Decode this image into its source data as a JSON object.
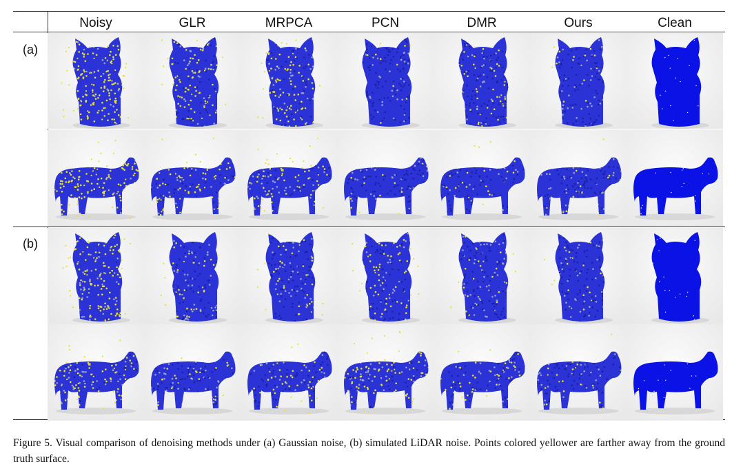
{
  "figure": {
    "columns": [
      "Noisy",
      "GLR",
      "MRPCA",
      "PCN",
      "DMR",
      "Ours",
      "Clean"
    ],
    "groups": [
      {
        "label": "(a)",
        "rows": [
          "cat",
          "cow"
        ]
      },
      {
        "label": "(b)",
        "rows": [
          "cat",
          "cow"
        ]
      }
    ],
    "cells": [
      [
        {
          "shape": "cat",
          "method": "Noisy",
          "yellow": 0.85
        },
        {
          "shape": "cat",
          "method": "GLR",
          "yellow": 0.45
        },
        {
          "shape": "cat",
          "method": "MRPCA",
          "yellow": 0.5
        },
        {
          "shape": "cat",
          "method": "PCN",
          "yellow": 0.06
        },
        {
          "shape": "cat",
          "method": "DMR",
          "yellow": 0.18
        },
        {
          "shape": "cat",
          "method": "Ours",
          "yellow": 0.1
        },
        {
          "shape": "cat",
          "method": "Clean",
          "yellow": 0.0
        }
      ],
      [
        {
          "shape": "cow",
          "method": "Noisy",
          "yellow": 0.85
        },
        {
          "shape": "cow",
          "method": "GLR",
          "yellow": 0.45
        },
        {
          "shape": "cow",
          "method": "MRPCA",
          "yellow": 0.55
        },
        {
          "shape": "cow",
          "method": "PCN",
          "yellow": 0.08
        },
        {
          "shape": "cow",
          "method": "DMR",
          "yellow": 0.12
        },
        {
          "shape": "cow",
          "method": "Ours",
          "yellow": 0.1
        },
        {
          "shape": "cow",
          "method": "Clean",
          "yellow": 0.0
        }
      ],
      [
        {
          "shape": "cat",
          "method": "Noisy",
          "yellow": 0.7
        },
        {
          "shape": "cat",
          "method": "GLR",
          "yellow": 0.2
        },
        {
          "shape": "cat",
          "method": "MRPCA",
          "yellow": 0.25
        },
        {
          "shape": "cat",
          "method": "PCN",
          "yellow": 0.3
        },
        {
          "shape": "cat",
          "method": "DMR",
          "yellow": 0.15
        },
        {
          "shape": "cat",
          "method": "Ours",
          "yellow": 0.15
        },
        {
          "shape": "cat",
          "method": "Clean",
          "yellow": 0.0
        }
      ],
      [
        {
          "shape": "cow",
          "method": "Noisy",
          "yellow": 0.6
        },
        {
          "shape": "cow",
          "method": "GLR",
          "yellow": 0.15
        },
        {
          "shape": "cow",
          "method": "MRPCA",
          "yellow": 0.25
        },
        {
          "shape": "cow",
          "method": "PCN",
          "yellow": 0.45
        },
        {
          "shape": "cow",
          "method": "DMR",
          "yellow": 0.15
        },
        {
          "shape": "cow",
          "method": "Ours",
          "yellow": 0.12
        },
        {
          "shape": "cow",
          "method": "Clean",
          "yellow": 0.0
        }
      ]
    ]
  },
  "colors": {
    "point_blue": "#2b33d6",
    "point_far": "#e8e12a",
    "clean_blue": "#0a12e6",
    "rule": "#333333"
  },
  "caption": "Figure 5. Visual comparison of denoising methods under (a) Gaussian noise, (b) simulated LiDAR noise.  Points colored yellower are farther away from the ground truth surface."
}
